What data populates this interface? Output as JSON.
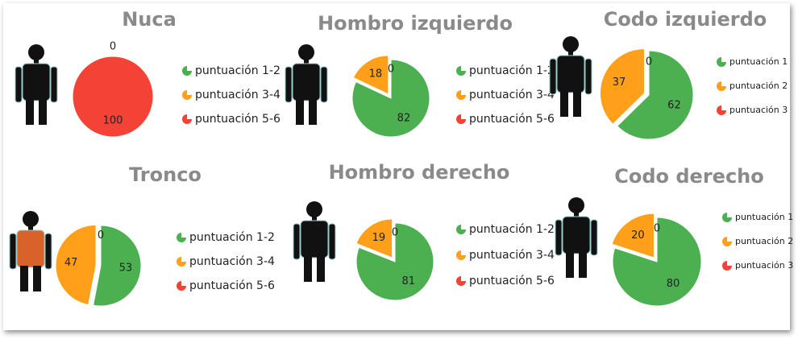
{
  "chart_data": [
    {
      "type": "pie",
      "title": "Nuca",
      "categories": [
        "puntuación 1-2",
        "puntuación 3-4",
        "puntuación 5-6"
      ],
      "values": [
        0,
        0,
        100
      ],
      "colors": [
        "#4caf50",
        "#ff9f1a",
        "#f44336"
      ]
    },
    {
      "type": "pie",
      "title": "Hombro izquierdo",
      "categories": [
        "puntuación 1-2",
        "puntuación 3-4",
        "puntuación 5-6"
      ],
      "values": [
        82,
        18,
        0
      ],
      "colors": [
        "#4caf50",
        "#ff9f1a",
        "#f44336"
      ]
    },
    {
      "type": "pie",
      "title": "Codo izquierdo",
      "categories": [
        "puntuación 1",
        "puntuación 2",
        "puntuación 3"
      ],
      "values": [
        62,
        37,
        0
      ],
      "colors": [
        "#4caf50",
        "#ff9f1a",
        "#f44336"
      ]
    },
    {
      "type": "pie",
      "title": "Tronco",
      "categories": [
        "puntuación 1-2",
        "puntuación 3-4",
        "puntuación 5-6"
      ],
      "values": [
        53,
        47,
        0
      ],
      "colors": [
        "#4caf50",
        "#ff9f1a",
        "#f44336"
      ]
    },
    {
      "type": "pie",
      "title": "Hombro derecho",
      "categories": [
        "puntuación 1-2",
        "puntuación 3-4",
        "puntuación 5-6"
      ],
      "values": [
        81,
        19,
        0
      ],
      "colors": [
        "#4caf50",
        "#ff9f1a",
        "#f44336"
      ]
    },
    {
      "type": "pie",
      "title": "Codo derecho",
      "categories": [
        "puntuación 1",
        "puntuación 2",
        "puntuación 3"
      ],
      "values": [
        80,
        20,
        0
      ],
      "colors": [
        "#4caf50",
        "#ff9f1a",
        "#f44336"
      ]
    }
  ]
}
